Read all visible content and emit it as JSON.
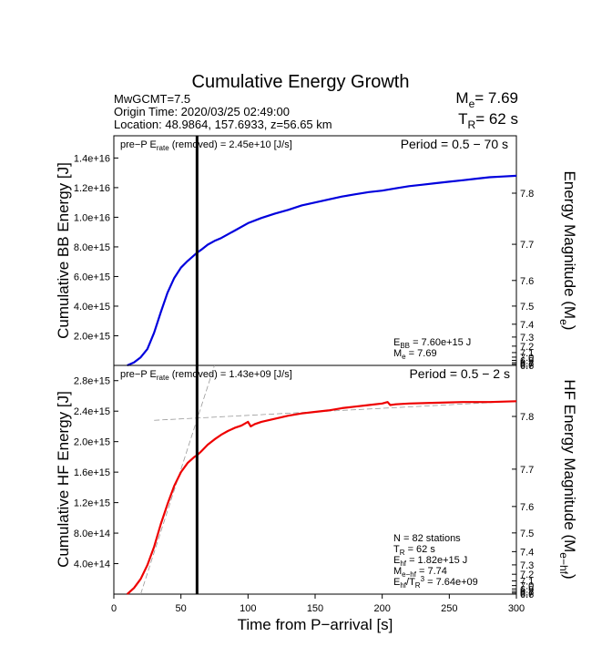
{
  "header": {
    "title": "Cumulative Energy Growth",
    "event": "MwGCMT=7.5",
    "origin_time": "Origin Time: 2020/03/25 02:49:00",
    "location": "Location: 48.9864, 157.6933, z=56.65 km",
    "me_prefix": "M",
    "me_sub": "e",
    "me_value": "= 7.69",
    "tr_prefix": "T",
    "tr_sub": "R",
    "tr_value": "= 62 s"
  },
  "chart_data": [
    {
      "type": "line",
      "name": "broadband",
      "xlim": [
        0,
        300
      ],
      "ylim": [
        0,
        1.55e+16
      ],
      "ylabel": "Cumulative BB Energy [J]",
      "yticks": [
        "2.0e+15",
        "4.0e+15",
        "6.0e+15",
        "8.0e+15",
        "1.0e+16",
        "1.2e+16",
        "1.4e+16"
      ],
      "ytick_values": [
        2000000000000000.0,
        4000000000000000.0,
        6000000000000000.0,
        8000000000000000.0,
        1e+16,
        1.2e+16,
        1.4e+16
      ],
      "right_ylabel": "Energy Magnitude (M",
      "right_ylabel_sub": "e",
      "right_ylabel_end": ")",
      "right_ticks": [
        "7.8",
        "7.7",
        "7.6",
        "7.5",
        "7.4",
        "7.3",
        "7.2",
        "7.1",
        "7.0",
        "6.9",
        "6.8",
        "6.7",
        "6.6"
      ],
      "pre_p_text": "pre−P E",
      "pre_p_sub": "rate",
      "pre_p_rest": " (removed) = 2.45e+10 [J/s]",
      "period": "Period = 0.5 − 70 s",
      "annotations": [
        {
          "main": "E",
          "sub": "BB",
          "rest": " = 7.60e+15 J"
        },
        {
          "main": "M",
          "sub": "e",
          "rest": " = 7.69"
        }
      ],
      "marker_x": 62,
      "color": "#0000dd",
      "x": [
        10,
        15,
        20,
        25,
        30,
        35,
        40,
        45,
        50,
        55,
        60,
        62,
        65,
        70,
        75,
        80,
        90,
        100,
        110,
        120,
        130,
        140,
        150,
        160,
        170,
        180,
        190,
        200,
        210,
        220,
        230,
        240,
        250,
        260,
        270,
        280,
        290,
        300
      ],
      "y": [
        0,
        200000000000000.0,
        550000000000000.0,
        1100000000000000.0,
        2200000000000000.0,
        3600000000000000.0,
        4900000000000000.0,
        5900000000000000.0,
        6600000000000000.0,
        7050000000000000.0,
        7450000000000000.0,
        7600000000000000.0,
        7800000000000000.0,
        8150000000000000.0,
        8400000000000000.0,
        8600000000000000.0,
        9100000000000000.0,
        9600000000000000.0,
        9950000000000000.0,
        1.025e+16,
        1.05e+16,
        1.08e+16,
        1.1e+16,
        1.12e+16,
        1.14e+16,
        1.155e+16,
        1.17e+16,
        1.18e+16,
        1.195e+16,
        1.21e+16,
        1.22e+16,
        1.23e+16,
        1.24e+16,
        1.25e+16,
        1.26e+16,
        1.27e+16,
        1.275e+16,
        1.28e+16
      ]
    },
    {
      "type": "line",
      "name": "high-frequency",
      "xlim": [
        0,
        300
      ],
      "ylim": [
        0,
        3000000000000000.0
      ],
      "xlabel": "Time from P−arrival [s]",
      "xticks": [
        "0",
        "50",
        "100",
        "150",
        "200",
        "250",
        "300"
      ],
      "xtick_values": [
        0,
        50,
        100,
        150,
        200,
        250,
        300
      ],
      "ylabel": "Cumulative HF Energy [J]",
      "yticks": [
        "4.0e+14",
        "8.0e+14",
        "1.2e+15",
        "1.6e+15",
        "2.0e+15",
        "2.4e+15",
        "2.8e+15"
      ],
      "ytick_values": [
        400000000000000.0,
        800000000000000.0,
        1200000000000000.0,
        1600000000000000.0,
        2000000000000000.0,
        2400000000000000.0,
        2800000000000000.0
      ],
      "right_ylabel": "HF Energy Magnitude (M",
      "right_ylabel_sub": "e−hf",
      "right_ylabel_end": ")",
      "right_ticks": [
        "7.8",
        "7.7",
        "7.6",
        "7.5",
        "7.4",
        "7.3",
        "7.2",
        "7.1",
        "7.0",
        "6.9",
        "6.8",
        "6.7",
        "6.6"
      ],
      "pre_p_text": "pre−P E",
      "pre_p_sub": "rate",
      "pre_p_rest": " (removed) = 1.43e+09 [J/s]",
      "period": "Period = 0.5 − 2 s",
      "annotations": [
        {
          "main": "N = 82 stations",
          "sub": "",
          "rest": ""
        },
        {
          "main": "T",
          "sub": "R",
          "rest": " = 62  s"
        },
        {
          "main": "E",
          "sub": "hf",
          "rest": " = 1.82e+15 J"
        },
        {
          "main": "M",
          "sub": "e−hf",
          "rest": " = 7.74"
        },
        {
          "main": "E",
          "sub": "hf",
          "rest": "/T",
          "sub2": "R",
          "sup2": "3",
          "rest2": " =  7.64e+09"
        }
      ],
      "marker_x": 62,
      "color": "#ee0000",
      "x": [
        10,
        15,
        20,
        25,
        30,
        35,
        40,
        45,
        50,
        55,
        60,
        62,
        65,
        70,
        75,
        80,
        85,
        90,
        95,
        100,
        102,
        105,
        110,
        120,
        130,
        140,
        150,
        160,
        170,
        180,
        190,
        200,
        204,
        206,
        210,
        220,
        240,
        260,
        280,
        300
      ],
      "y": [
        0,
        80000000000000.0,
        200000000000000.0,
        380000000000000.0,
        620000000000000.0,
        920000000000000.0,
        1180000000000000.0,
        1420000000000000.0,
        1600000000000000.0,
        1720000000000000.0,
        1800000000000000.0,
        1820000000000000.0,
        1870000000000000.0,
        1960000000000000.0,
        2030000000000000.0,
        2090000000000000.0,
        2140000000000000.0,
        2180000000000000.0,
        2210000000000000.0,
        2260000000000000.0,
        2200000000000000.0,
        2230000000000000.0,
        2260000000000000.0,
        2300000000000000.0,
        2340000000000000.0,
        2370000000000000.0,
        2390000000000000.0,
        2410000000000000.0,
        2440000000000000.0,
        2460000000000000.0,
        2480000000000000.0,
        2500000000000000.0,
        2520000000000000.0,
        2480000000000000.0,
        2490000000000000.0,
        2500000000000000.0,
        2510000000000000.0,
        2520000000000000.0,
        2520000000000000.0,
        2530000000000000.0
      ],
      "fit_lines": [
        {
          "x": [
            20,
            75
          ],
          "y": [
            0,
            3000000000000000.0
          ]
        },
        {
          "x": [
            30,
            300
          ],
          "y": [
            2280000000000000.0,
            2530000000000000.0
          ]
        }
      ]
    }
  ]
}
